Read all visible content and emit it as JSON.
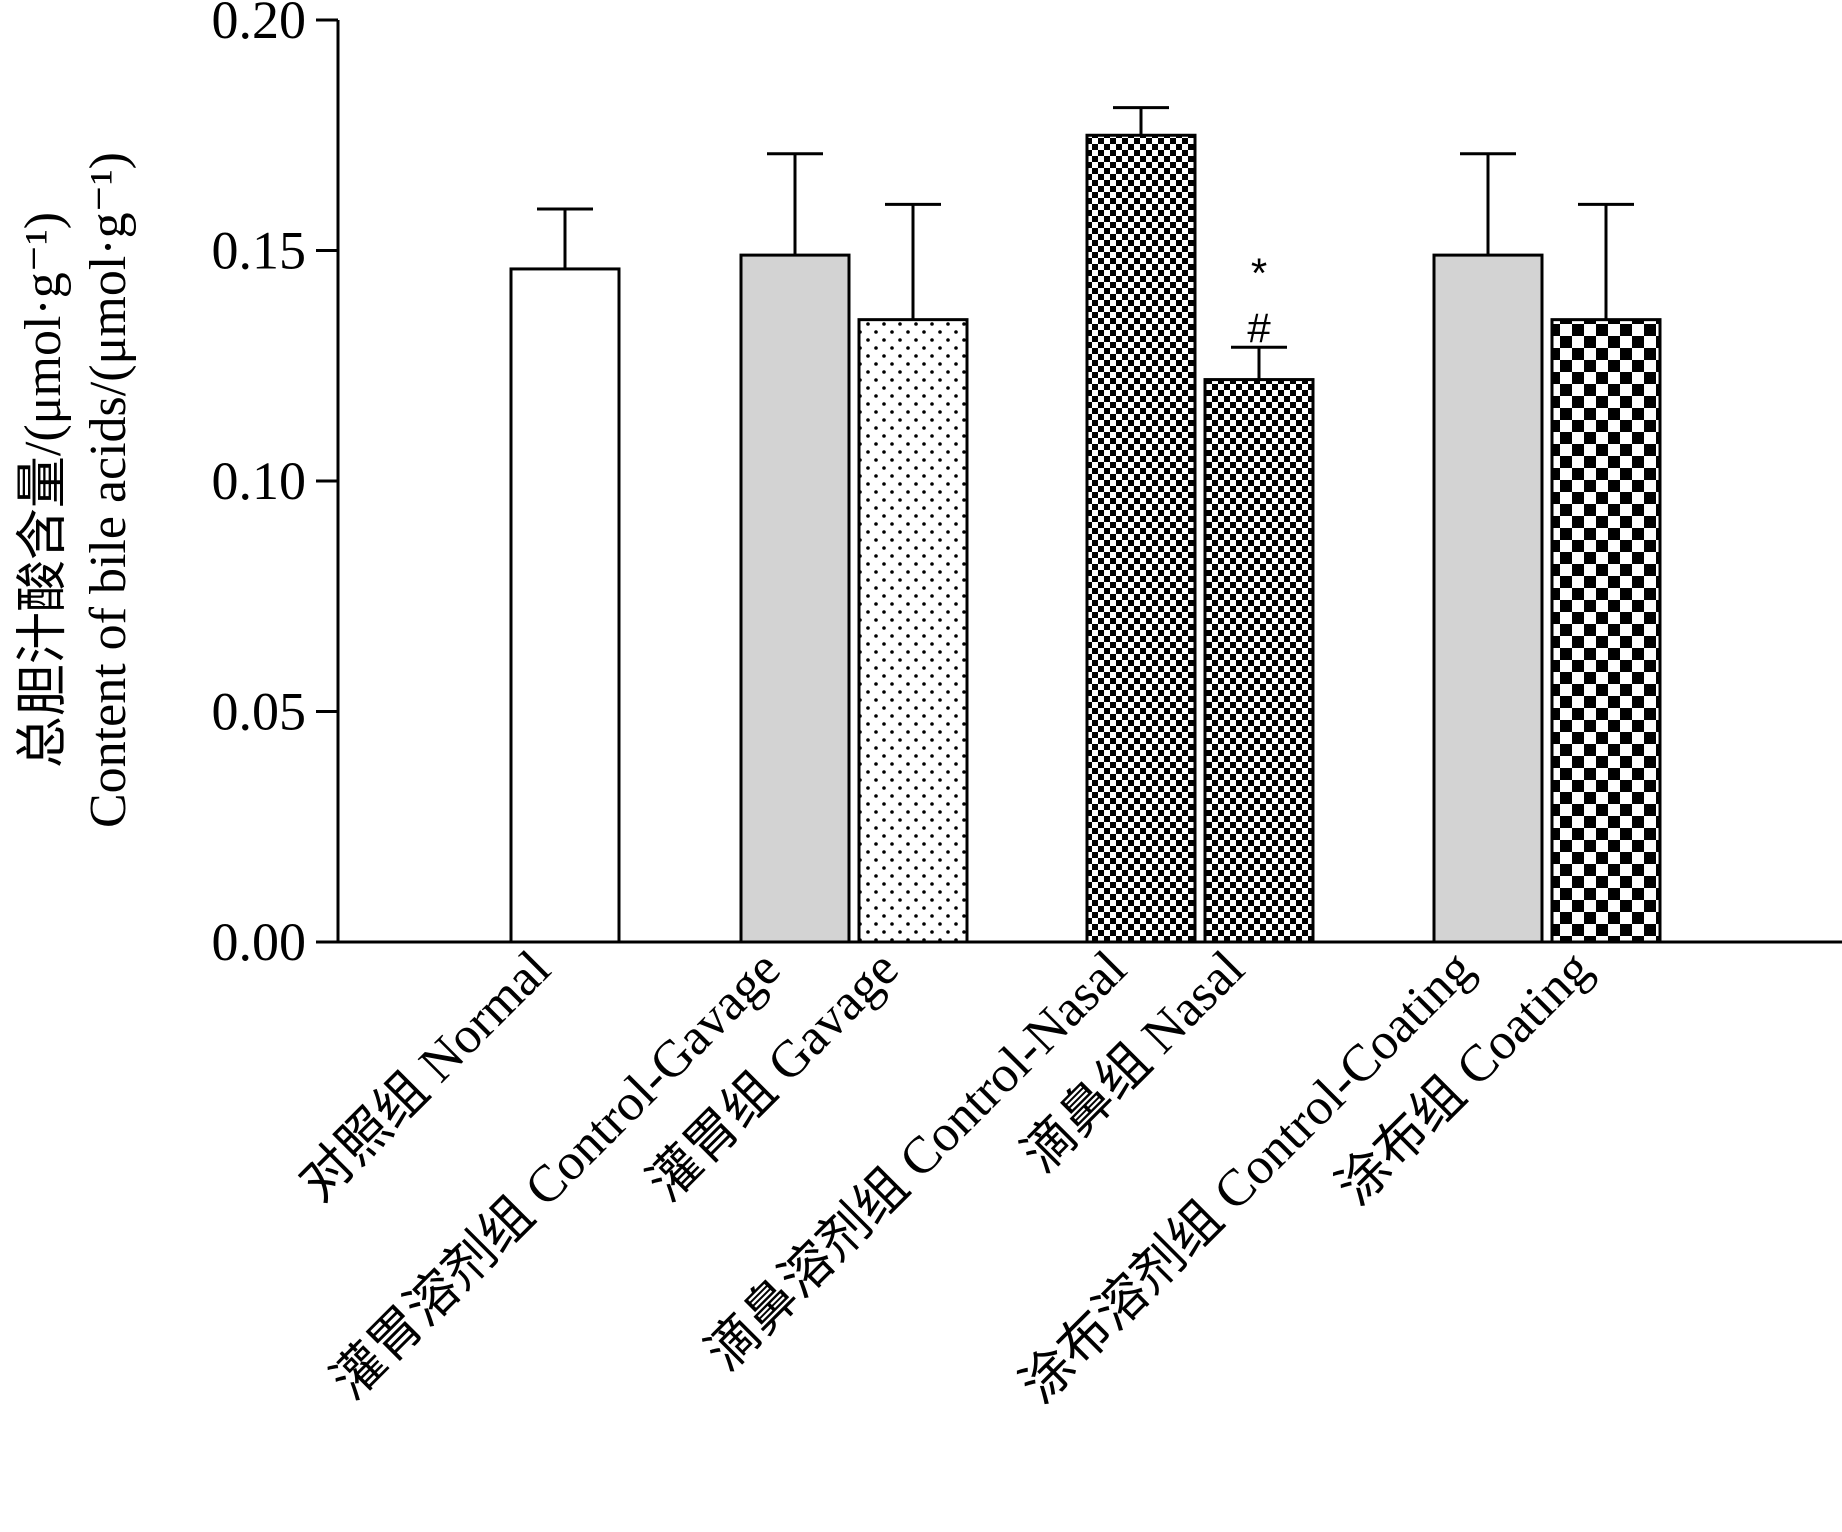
{
  "chart_data": {
    "type": "bar",
    "title": "",
    "ylabel_lines": [
      "总胆汁酸含量/(μmol·g⁻¹)",
      "Content of bile acids/(μmol·g⁻¹)"
    ],
    "xlabel": "",
    "ylim": [
      0,
      0.2
    ],
    "yticks": [
      "0.00",
      "0.05",
      "0.10",
      "0.15",
      "0.20"
    ],
    "ytick_values": [
      0,
      0.05,
      0.1,
      0.15,
      0.2
    ],
    "grid": false,
    "categories": [
      "对照组 Normal",
      "灌胃溶剂组 Control-Gavage",
      "灌胃组 Gavage",
      "滴鼻溶剂组 Control-Nasal",
      "滴鼻组 Nasal",
      "涂布溶剂组 Control-Coating",
      "涂布组 Coating"
    ],
    "values": [
      0.146,
      0.149,
      0.135,
      0.175,
      0.122,
      0.149,
      0.135
    ],
    "error": [
      0.013,
      0.022,
      0.025,
      0.006,
      0.007,
      0.022,
      0.025
    ],
    "patterns": [
      "white",
      "gray",
      "dots",
      "fine-checker",
      "fine-checker",
      "gray",
      "coarse-checker"
    ],
    "annotations": [
      {
        "category": "滴鼻组 Nasal",
        "labels": [
          "*",
          "#"
        ]
      }
    ],
    "colors": {
      "gray_fill": "#d3d3d3",
      "axis": "#000000",
      "white_fill": "#ffffff"
    }
  }
}
